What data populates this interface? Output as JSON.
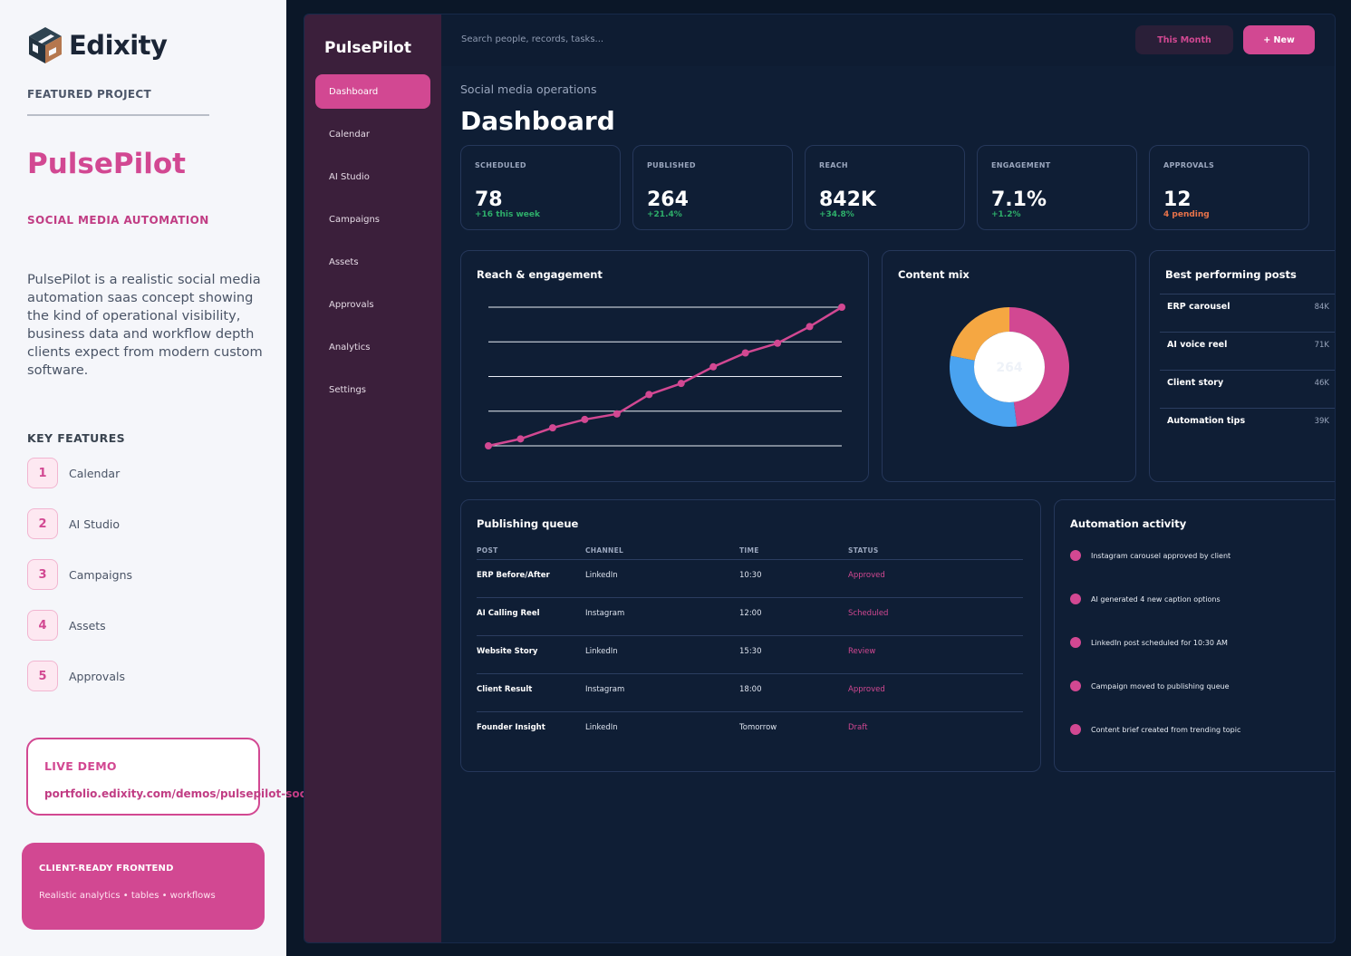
{
  "info": {
    "logo_text": "Edixity",
    "eyebrow": "FEATURED PROJECT",
    "title": "PulsePilot",
    "subtitle": "SOCIAL MEDIA AUTOMATION",
    "description": "PulsePilot is a realistic social media automation saas concept showing the kind of operational visibility, business data and workflow depth clients expect from modern custom software.",
    "key_features_title": "KEY FEATURES",
    "features": [
      {
        "num": "1",
        "label": "Calendar"
      },
      {
        "num": "2",
        "label": "AI Studio"
      },
      {
        "num": "3",
        "label": "Campaigns"
      },
      {
        "num": "4",
        "label": "Assets"
      },
      {
        "num": "5",
        "label": "Approvals"
      }
    ],
    "demo_label": "LIVE DEMO",
    "demo_url": "portfolio.edixity.com/demos/pulsepilot-soc",
    "cta_title": "CLIENT-READY FRONTEND",
    "cta_sub": "Realistic analytics • tables • workflows"
  },
  "app": {
    "brand": "PulsePilot",
    "nav": [
      "Dashboard",
      "Calendar",
      "AI Studio",
      "Campaigns",
      "Assets",
      "Approvals",
      "Analytics",
      "Settings"
    ],
    "active_nav": 0,
    "search_placeholder": "Search people, records, tasks...",
    "btn_month": "This Month",
    "btn_new": "+ New",
    "crumb": "Social media operations",
    "title": "Dashboard",
    "colors": {
      "accent": "#d24892",
      "background": "#0f1e35",
      "sidebar": "#3b1f3b",
      "positive": "#2eae6a",
      "warning": "#e8734a",
      "blue": "#4aa3f0",
      "orange": "#f5a742"
    }
  },
  "stats": [
    {
      "label": "SCHEDULED",
      "value": "78",
      "delta": "+16 this week",
      "tone": "positive"
    },
    {
      "label": "PUBLISHED",
      "value": "264",
      "delta": "+21.4%",
      "tone": "positive"
    },
    {
      "label": "REACH",
      "value": "842K",
      "delta": "+34.8%",
      "tone": "positive"
    },
    {
      "label": "ENGAGEMENT",
      "value": "7.1%",
      "delta": "+1.2%",
      "tone": "positive"
    },
    {
      "label": "APPROVALS",
      "value": "12",
      "delta": "4 pending",
      "tone": "warning"
    }
  ],
  "reach_card": {
    "title": "Reach & engagement"
  },
  "mix_card": {
    "title": "Content mix",
    "center": "264"
  },
  "best_card": {
    "title": "Best performing posts",
    "rows": [
      {
        "name": "ERP carousel",
        "value": "84K"
      },
      {
        "name": "AI voice reel",
        "value": "71K"
      },
      {
        "name": "Client story",
        "value": "46K"
      },
      {
        "name": "Automation tips",
        "value": "39K"
      }
    ]
  },
  "queue": {
    "title": "Publishing queue",
    "headers": [
      "POST",
      "CHANNEL",
      "TIME",
      "STATUS"
    ],
    "rows": [
      [
        "ERP Before/After",
        "LinkedIn",
        "10:30",
        "Approved"
      ],
      [
        "AI Calling Reel",
        "Instagram",
        "12:00",
        "Scheduled"
      ],
      [
        "Website Story",
        "LinkedIn",
        "15:30",
        "Review"
      ],
      [
        "Client Result",
        "Instagram",
        "18:00",
        "Approved"
      ],
      [
        "Founder Insight",
        "LinkedIn",
        "Tomorrow",
        "Draft"
      ]
    ]
  },
  "activity": {
    "title": "Automation activity",
    "items": [
      "Instagram carousel approved by client",
      "AI generated 4 new caption options",
      "LinkedIn post scheduled for 10:30 AM",
      "Campaign moved to publishing queue",
      "Content brief created from trending topic"
    ]
  },
  "chart_data": [
    {
      "type": "line",
      "title": "Reach & engagement",
      "x": [
        1,
        2,
        3,
        4,
        5,
        6,
        7,
        8,
        9,
        10,
        11,
        12
      ],
      "series": [
        {
          "values": [
            0,
            5,
            13,
            19,
            23,
            37,
            45,
            57,
            67,
            74,
            86,
            100
          ]
        }
      ],
      "ylim": [
        0,
        100
      ],
      "grid": true,
      "color": "#d24892"
    },
    {
      "type": "pie",
      "title": "Content mix",
      "center_label": "264",
      "values": [
        48,
        30,
        22
      ],
      "colors": [
        "#d24892",
        "#4aa3f0",
        "#f5a742"
      ]
    }
  ]
}
